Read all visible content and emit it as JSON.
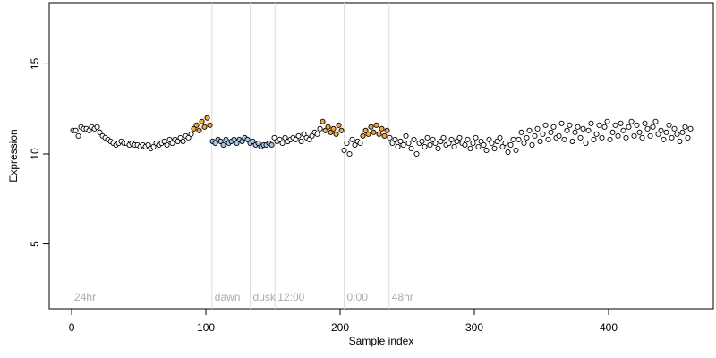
{
  "chart_data": {
    "type": "scatter",
    "x_label": "Sample index",
    "y_label": "Expression",
    "xlim": [
      -16.7,
      478
    ],
    "ylim": [
      1.4,
      18.4
    ],
    "xticks": [
      0,
      100,
      200,
      300,
      400
    ],
    "yticks": [
      5,
      10,
      15
    ],
    "grid": false,
    "vlines": [
      104.5,
      133,
      151.5,
      203,
      236.5
    ],
    "annotations": [
      {
        "text": "24hr",
        "x": 0,
        "y": 2
      },
      {
        "text": "dawn",
        "x": 104.5,
        "y": 2
      },
      {
        "text": "dusk",
        "x": 133,
        "y": 2
      },
      {
        "text": "12:00",
        "x": 151.5,
        "y": 2
      },
      {
        "text": "0:00",
        "x": 203,
        "y": 2
      },
      {
        "text": "48hr",
        "x": 236.5,
        "y": 2
      }
    ],
    "series": [
      {
        "color": "#ffffff",
        "x": [
          1,
          3,
          5,
          7,
          9,
          11,
          13,
          15,
          17,
          19,
          21,
          23,
          25,
          27,
          29,
          31,
          33,
          35,
          37,
          39,
          41,
          43,
          45,
          47,
          49,
          51,
          53,
          55,
          57,
          59,
          61,
          63,
          65,
          67,
          69,
          71,
          73,
          75,
          77,
          79,
          81,
          83,
          85,
          87,
          89
        ],
        "values": [
          11.3,
          11.3,
          11.0,
          11.5,
          11.4,
          11.4,
          11.3,
          11.5,
          11.4,
          11.5,
          11.2,
          11.0,
          10.9,
          10.8,
          10.7,
          10.6,
          10.5,
          10.6,
          10.7,
          10.6,
          10.6,
          10.5,
          10.6,
          10.5,
          10.5,
          10.4,
          10.5,
          10.4,
          10.5,
          10.3,
          10.4,
          10.6,
          10.5,
          10.6,
          10.7,
          10.5,
          10.8,
          10.6,
          10.8,
          10.7,
          10.9,
          10.7,
          11.0,
          10.9,
          11.1
        ]
      },
      {
        "color": "#f5a742",
        "x": [
          91,
          93,
          95,
          97,
          99,
          101,
          103
        ],
        "values": [
          11.4,
          11.6,
          11.3,
          11.8,
          11.5,
          12.0,
          11.6
        ]
      },
      {
        "color": "#a9c5ea",
        "x": [
          105,
          107,
          109,
          111,
          113,
          115,
          117,
          119,
          121,
          123,
          125,
          127,
          129,
          131,
          133,
          135,
          137,
          139,
          141,
          143,
          145,
          147,
          149
        ],
        "values": [
          10.7,
          10.6,
          10.8,
          10.7,
          10.5,
          10.8,
          10.6,
          10.7,
          10.8,
          10.6,
          10.8,
          10.7,
          10.9,
          10.8,
          10.6,
          10.7,
          10.5,
          10.6,
          10.4,
          10.5,
          10.5,
          10.6,
          10.5
        ]
      },
      {
        "color": "#ffffff",
        "x": [
          151,
          153,
          155,
          157,
          159,
          161,
          163,
          165,
          167,
          169,
          171,
          173,
          175,
          177,
          179,
          181,
          183,
          185
        ],
        "values": [
          10.9,
          10.7,
          10.8,
          10.6,
          10.9,
          10.7,
          10.8,
          10.9,
          10.8,
          11.0,
          10.7,
          11.1,
          10.9,
          10.8,
          11.0,
          11.2,
          11.1,
          11.4
        ]
      },
      {
        "color": "#f5a742",
        "x": [
          187,
          189,
          191,
          193,
          195,
          197,
          199,
          201
        ],
        "values": [
          11.8,
          11.3,
          11.5,
          11.2,
          11.4,
          11.1,
          11.6,
          11.3
        ]
      },
      {
        "color": "#ffffff",
        "x": [
          203,
          205,
          207,
          209,
          211,
          213,
          215
        ],
        "values": [
          10.2,
          10.6,
          10.0,
          10.8,
          10.5,
          10.7,
          10.6
        ]
      },
      {
        "color": "#f5a742",
        "x": [
          217,
          219,
          221,
          223,
          225,
          227,
          229,
          231,
          233,
          235
        ],
        "values": [
          11.0,
          11.3,
          11.1,
          11.5,
          11.2,
          11.6,
          11.1,
          11.4,
          11.0,
          11.3
        ]
      },
      {
        "color": "#ffffff",
        "x": [
          237,
          239,
          241,
          243,
          245,
          247,
          249,
          251,
          253,
          255,
          257,
          259,
          261,
          263,
          265,
          267,
          269,
          271,
          273,
          275,
          277,
          279,
          281,
          283,
          285,
          287,
          289,
          291,
          293,
          295,
          297,
          299,
          301,
          303,
          305,
          307,
          309,
          311,
          313,
          315,
          317,
          319,
          321,
          323,
          325,
          327,
          329
        ],
        "values": [
          10.9,
          10.6,
          10.8,
          10.4,
          10.7,
          10.5,
          11.0,
          10.6,
          10.3,
          10.8,
          10.0,
          10.6,
          10.7,
          10.4,
          10.9,
          10.5,
          10.8,
          10.6,
          10.3,
          10.7,
          10.9,
          10.5,
          10.6,
          10.8,
          10.4,
          10.7,
          10.9,
          10.6,
          10.5,
          10.8,
          10.3,
          10.6,
          10.9,
          10.4,
          10.7,
          10.5,
          10.2,
          10.8,
          10.6,
          10.3,
          10.7,
          10.9,
          10.4,
          10.6,
          10.1,
          10.5,
          10.8
        ]
      },
      {
        "color": "#ffffff",
        "x": [
          331,
          333,
          335,
          337,
          339,
          341,
          343,
          345,
          347,
          349,
          351,
          353,
          355,
          357,
          359,
          361,
          363,
          365,
          367,
          369,
          371,
          373,
          375,
          377,
          379,
          381,
          383,
          385,
          387,
          389,
          391,
          393,
          395,
          397,
          399,
          401,
          403,
          405,
          407,
          409,
          411,
          413,
          415,
          417,
          419,
          421,
          423,
          425,
          427,
          429,
          431,
          433,
          435,
          437,
          439,
          441,
          443,
          445,
          447,
          449,
          451,
          453,
          455,
          457,
          459,
          461
        ],
        "values": [
          10.2,
          10.8,
          11.2,
          10.6,
          10.9,
          11.3,
          10.5,
          11.0,
          11.4,
          10.7,
          11.1,
          11.6,
          10.8,
          11.2,
          11.5,
          10.9,
          11.0,
          11.7,
          10.8,
          11.3,
          11.6,
          10.7,
          11.2,
          11.5,
          10.9,
          11.4,
          10.6,
          11.3,
          11.7,
          10.8,
          11.1,
          11.6,
          10.9,
          11.5,
          11.8,
          10.8,
          11.2,
          11.6,
          11.0,
          11.7,
          11.3,
          10.9,
          11.5,
          11.8,
          11.0,
          11.6,
          11.2,
          10.9,
          11.7,
          11.4,
          11.0,
          11.5,
          11.8,
          11.1,
          11.3,
          10.8,
          11.2,
          11.6,
          10.9,
          11.4,
          11.1,
          10.7,
          11.2,
          11.5,
          10.9,
          11.4
        ]
      }
    ]
  }
}
